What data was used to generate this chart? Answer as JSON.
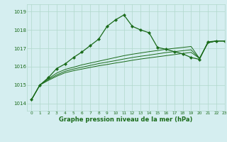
{
  "title": "Graphe pression niveau de la mer (hPa)",
  "bg_color": "#d5eef0",
  "grid_color": "#b0d8cc",
  "line_color": "#1a6b1a",
  "xlim": [
    -0.5,
    23
  ],
  "ylim": [
    1013.6,
    1019.4
  ],
  "yticks": [
    1014,
    1015,
    1016,
    1017,
    1018,
    1019
  ],
  "xticks": [
    0,
    1,
    2,
    3,
    4,
    5,
    6,
    7,
    8,
    9,
    10,
    11,
    12,
    13,
    14,
    15,
    16,
    17,
    18,
    19,
    20,
    21,
    22,
    23
  ],
  "series1_x": [
    0,
    1,
    2,
    3,
    4,
    5,
    6,
    7,
    8,
    9,
    10,
    11,
    12,
    13,
    14,
    15,
    16,
    17,
    18,
    19,
    20,
    21,
    22,
    23
  ],
  "series1_y": [
    1014.2,
    1015.0,
    1015.4,
    1015.9,
    1016.15,
    1016.5,
    1016.8,
    1017.15,
    1017.5,
    1018.2,
    1018.55,
    1018.82,
    1018.2,
    1018.0,
    1017.85,
    1017.05,
    1016.95,
    1016.82,
    1016.7,
    1016.5,
    1016.4,
    1017.35,
    1017.4,
    1017.4
  ],
  "series2_x": [
    0,
    1,
    2,
    3,
    4,
    5,
    6,
    7,
    8,
    9,
    10,
    11,
    12,
    13,
    14,
    15,
    16,
    17,
    18,
    19,
    20,
    21,
    22,
    23
  ],
  "series2_y": [
    1014.2,
    1015.0,
    1015.35,
    1015.65,
    1015.85,
    1015.97,
    1016.1,
    1016.2,
    1016.3,
    1016.4,
    1016.5,
    1016.6,
    1016.68,
    1016.75,
    1016.82,
    1016.88,
    1016.95,
    1017.0,
    1017.05,
    1017.1,
    1016.45,
    1017.3,
    1017.4,
    1017.4
  ],
  "series3_x": [
    0,
    1,
    2,
    3,
    4,
    5,
    6,
    7,
    8,
    9,
    10,
    11,
    12,
    13,
    14,
    15,
    16,
    17,
    18,
    19,
    20,
    21,
    22,
    23
  ],
  "series3_y": [
    1014.2,
    1015.0,
    1015.3,
    1015.55,
    1015.75,
    1015.87,
    1015.97,
    1016.07,
    1016.17,
    1016.25,
    1016.33,
    1016.42,
    1016.5,
    1016.57,
    1016.63,
    1016.7,
    1016.77,
    1016.82,
    1016.87,
    1016.92,
    1016.45,
    1017.3,
    1017.4,
    1017.4
  ],
  "series4_x": [
    0,
    1,
    2,
    3,
    4,
    5,
    6,
    7,
    8,
    9,
    10,
    11,
    12,
    13,
    14,
    15,
    16,
    17,
    18,
    19,
    20,
    21,
    22,
    23
  ],
  "series4_y": [
    1014.2,
    1015.0,
    1015.25,
    1015.48,
    1015.67,
    1015.78,
    1015.87,
    1015.96,
    1016.05,
    1016.12,
    1016.2,
    1016.27,
    1016.35,
    1016.42,
    1016.48,
    1016.54,
    1016.6,
    1016.66,
    1016.72,
    1016.78,
    1016.45,
    1017.3,
    1017.4,
    1017.4
  ]
}
